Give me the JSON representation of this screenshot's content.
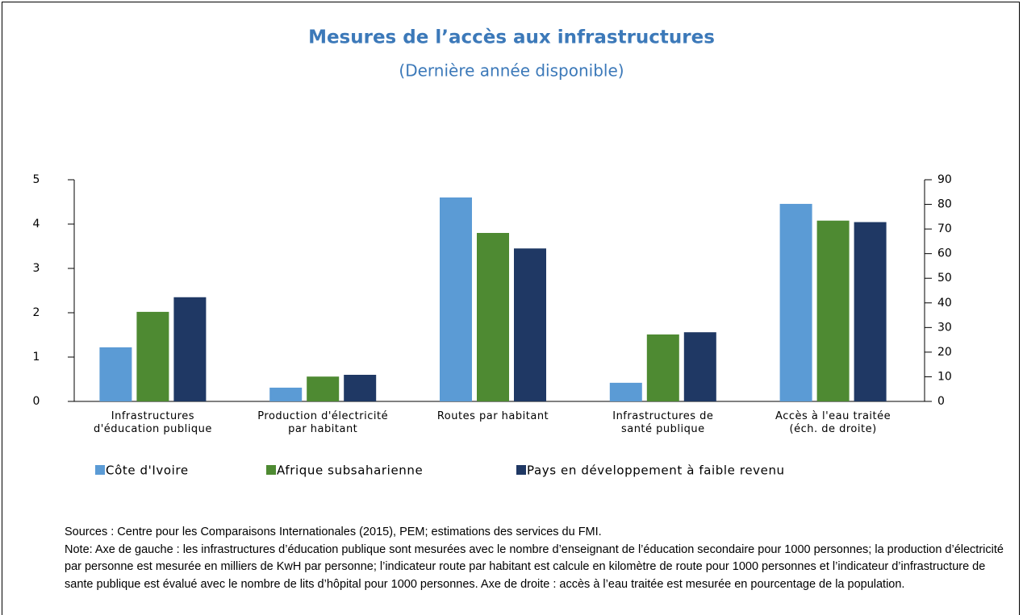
{
  "chart_data": {
    "type": "bar",
    "title": "Mesures de l’accès aux infrastructures",
    "subtitle": "(Dernière année disponible)",
    "categories": [
      "Infrastructures d'éducation publique",
      "Production d'électricité par habitant",
      "Routes par habitant",
      "Infrastructures de santé publique",
      "Accès à l'eau traitée (éch. de droite)"
    ],
    "category_axes": [
      "y",
      "y",
      "y",
      "y",
      "y2"
    ],
    "series": [
      {
        "name": "Côte d'Ivoire",
        "color": "#5b9bd5",
        "values": [
          1.22,
          0.31,
          4.6,
          0.42,
          80.2
        ]
      },
      {
        "name": "Afrique subsaharienne",
        "color": "#4e8a32",
        "values": [
          2.02,
          0.56,
          3.8,
          1.51,
          73.4
        ]
      },
      {
        "name": "Pays en développement à faible revenu",
        "color": "#1f3864",
        "values": [
          2.35,
          0.6,
          3.45,
          1.56,
          72.8
        ]
      }
    ],
    "ylim": [
      0,
      5
    ],
    "yticks": [
      0,
      1,
      2,
      3,
      4,
      5
    ],
    "y2lim": [
      0,
      90
    ],
    "y2ticks": [
      0,
      10,
      20,
      30,
      40,
      50,
      60,
      70,
      80,
      90
    ],
    "legend": "bottom",
    "grid": false,
    "sources": "Sources : Centre pour les Comparaisons Internationales (2015), PEM; estimations des services du FMI.",
    "note": "Note: Axe de gauche : les infrastructures d’éducation publique  sont mesurées avec le nombre d’enseignant de l’éducation secondaire pour 1000 personnes; la production d’électricité par personne est mesurée en milliers de KwH par personne; l’indicateur route par habitant est calcule  en kilomètre de route pour 1000 personnes et l’indicateur d’infrastructure de sante publique est évalué avec le nombre de lits d’hôpital pour 1000 personnes. Axe de droite : accès à l’eau traitée  est mesurée en pourcentage de la population."
  }
}
